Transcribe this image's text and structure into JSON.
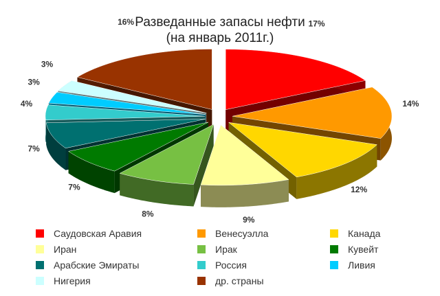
{
  "chart_data": {
    "type": "pie",
    "title": "Разведанные запасы нефти",
    "subtitle": "(на январь 2011г.)",
    "legend_position": "bottom",
    "slices": [
      {
        "label": "Саудовская Аравия",
        "value": 17,
        "data_label": "17%",
        "color": "#ff0000"
      },
      {
        "label": "Венесуэлла",
        "value": 14,
        "data_label": "14%",
        "color": "#ff9900"
      },
      {
        "label": "Канада",
        "value": 12,
        "data_label": "12%",
        "color": "#ffd700"
      },
      {
        "label": "Иран",
        "value": 9,
        "data_label": "9%",
        "color": "#ffff99"
      },
      {
        "label": "Ирак",
        "value": 8,
        "data_label": "8%",
        "color": "#77c043"
      },
      {
        "label": "Кувейт",
        "value": 7,
        "data_label": "7%",
        "color": "#007a00"
      },
      {
        "label": "Арабские Эмираты",
        "value": 7,
        "data_label": "7%",
        "color": "#007070"
      },
      {
        "label": "Россия",
        "value": 4,
        "data_label": "4%",
        "color": "#33cccc"
      },
      {
        "label": "Ливия",
        "value": 3,
        "data_label": "3%",
        "color": "#00ccff"
      },
      {
        "label": "Нигерия",
        "value": 3,
        "data_label": "3%",
        "color": "#ccffff"
      },
      {
        "label": "др. страны",
        "value": 16,
        "data_label": "16%",
        "color": "#993300"
      }
    ]
  }
}
